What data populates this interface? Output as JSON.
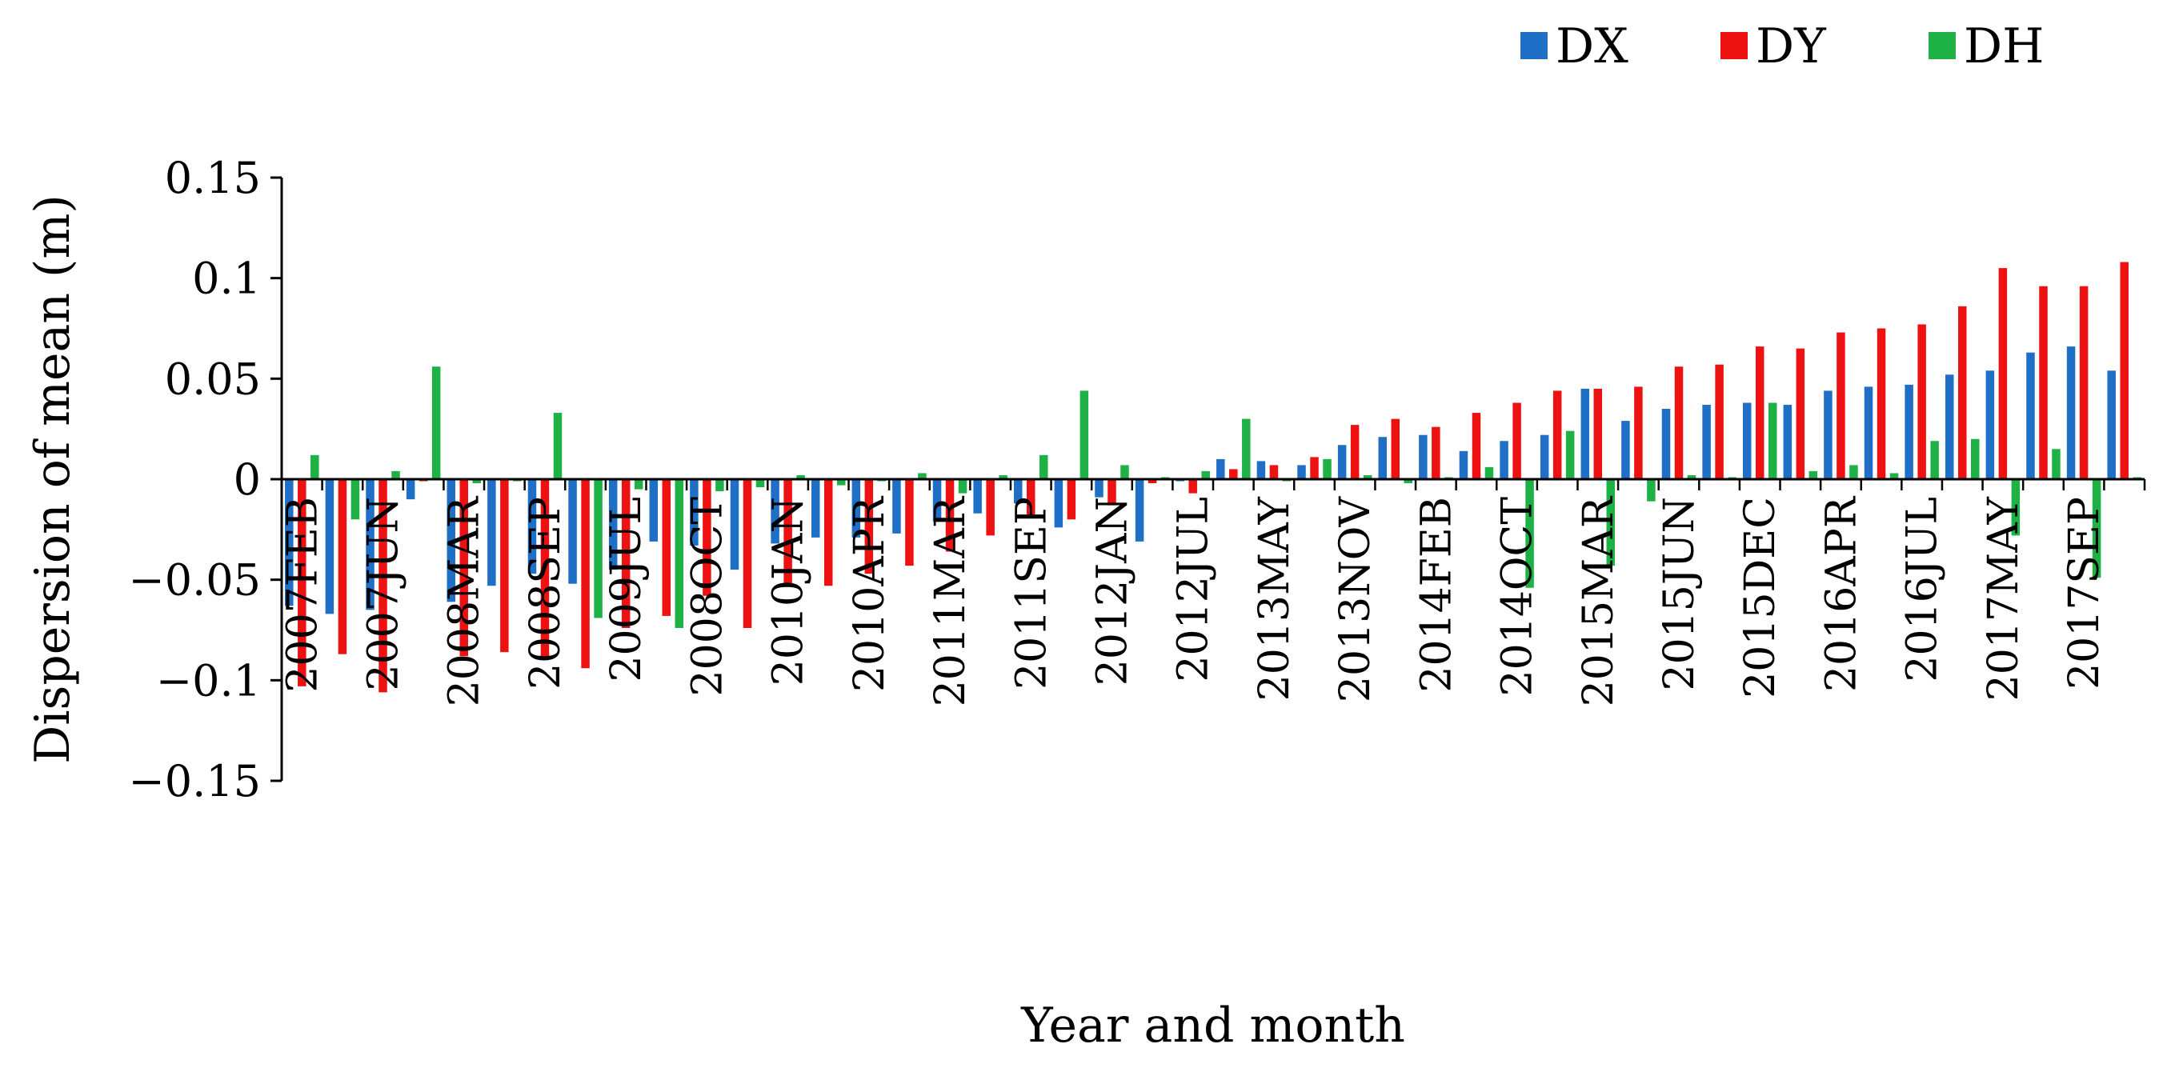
{
  "chart_data": {
    "type": "bar",
    "xlabel": "Year and month",
    "ylabel": "Dispersion of mean (m)",
    "ylim": [
      -0.15,
      0.15
    ],
    "yticks": [
      0.15,
      0.1,
      0.05,
      0,
      -0.05,
      -0.1,
      -0.15
    ],
    "ytick_labels": [
      "0.15",
      "0.1",
      "0.05",
      "0",
      "−0.05",
      "−0.1",
      "−0.15"
    ],
    "grid": false,
    "legend_position": "top-right",
    "x_tick_labels": [
      {
        "index": 0,
        "label": "2007FEB"
      },
      {
        "index": 2,
        "label": "2007JUN"
      },
      {
        "index": 4,
        "label": "2008MAR"
      },
      {
        "index": 6,
        "label": "2008SEP"
      },
      {
        "index": 8,
        "label": "2009JUL"
      },
      {
        "index": 10,
        "label": "2008OCT"
      },
      {
        "index": 12,
        "label": "2010JAN"
      },
      {
        "index": 14,
        "label": "2010APR"
      },
      {
        "index": 16,
        "label": "2011MAR"
      },
      {
        "index": 18,
        "label": "2011SEP"
      },
      {
        "index": 20,
        "label": "2012JAN"
      },
      {
        "index": 22,
        "label": "2012JUL"
      },
      {
        "index": 24,
        "label": "2013MAY"
      },
      {
        "index": 26,
        "label": "2013NOV"
      },
      {
        "index": 28,
        "label": "2014FEB"
      },
      {
        "index": 30,
        "label": "2014OCT"
      },
      {
        "index": 32,
        "label": "2015MAR"
      },
      {
        "index": 34,
        "label": "2015JUN"
      },
      {
        "index": 36,
        "label": "2015DEC"
      },
      {
        "index": 38,
        "label": "2016APR"
      },
      {
        "index": 40,
        "label": "2016JUL"
      },
      {
        "index": 42,
        "label": "2017MAY"
      },
      {
        "index": 44,
        "label": "2017SEP"
      }
    ],
    "series": [
      {
        "name": "DX",
        "color": "#1f6fc6",
        "values": [
          -0.063,
          -0.067,
          -0.065,
          -0.01,
          -0.061,
          -0.053,
          -0.047,
          -0.052,
          -0.045,
          -0.031,
          -0.033,
          -0.045,
          -0.032,
          -0.029,
          -0.029,
          -0.027,
          -0.021,
          -0.017,
          -0.012,
          -0.024,
          -0.009,
          -0.031,
          -0.001,
          0.01,
          0.009,
          0.007,
          0.017,
          0.021,
          0.022,
          0.014,
          0.019,
          0.022,
          0.045,
          0.029,
          0.035,
          0.037,
          0.038,
          0.037,
          0.044,
          0.046,
          0.047,
          0.052,
          0.054,
          0.063,
          0.066,
          0.054
        ]
      },
      {
        "name": "DY",
        "color": "#ee1111",
        "values": [
          -0.103,
          -0.087,
          -0.106,
          -0.001,
          -0.088,
          -0.086,
          -0.088,
          -0.094,
          -0.074,
          -0.068,
          -0.058,
          -0.074,
          -0.053,
          -0.053,
          -0.047,
          -0.043,
          -0.036,
          -0.028,
          -0.019,
          -0.02,
          -0.013,
          -0.002,
          -0.007,
          0.005,
          0.007,
          0.011,
          0.027,
          0.03,
          0.026,
          0.033,
          0.038,
          0.044,
          0.045,
          0.046,
          0.056,
          0.057,
          0.066,
          0.065,
          0.073,
          0.075,
          0.077,
          0.086,
          0.105,
          0.096,
          0.096,
          0.108
        ]
      },
      {
        "name": "DH",
        "color": "#1db146",
        "values": [
          0.012,
          -0.02,
          0.004,
          0.056,
          -0.002,
          -0.001,
          0.033,
          -0.069,
          -0.005,
          -0.074,
          -0.006,
          -0.004,
          0.002,
          -0.003,
          -0.001,
          0.003,
          -0.007,
          0.002,
          0.012,
          0.044,
          0.007,
          0.001,
          0.004,
          0.03,
          -0.001,
          0.01,
          0.002,
          -0.002,
          0.001,
          0.006,
          -0.054,
          0.024,
          -0.043,
          -0.011,
          0.002,
          0.001,
          0.038,
          0.004,
          0.007,
          0.003,
          0.019,
          0.02,
          -0.028,
          0.015,
          -0.049,
          0.001
        ]
      }
    ]
  }
}
